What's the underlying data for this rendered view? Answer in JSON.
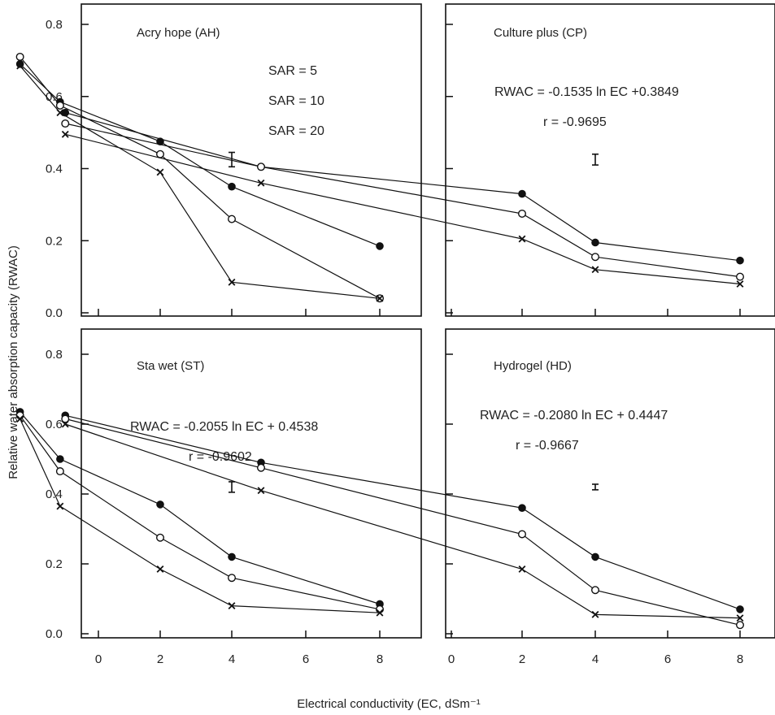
{
  "figure": {
    "ylabel": "Relative water absorption capacity (RWAC)",
    "xlabel": "Electrical conductivity (EC, dSm⁻¹",
    "yticks": [
      "0.0",
      "0.2",
      "0.4",
      "0.6",
      "0.8"
    ],
    "xticks": [
      "0",
      "2",
      "4",
      "6",
      "8"
    ],
    "legend": [
      "SAR = 5",
      "SAR = 10",
      "SAR = 20"
    ]
  },
  "chart_data": [
    {
      "type": "line",
      "title": "Acry hope (AH)",
      "xlim": [
        0,
        9
      ],
      "ylim": [
        0,
        0.85
      ],
      "x": [
        0.25,
        0.75,
        2,
        4,
        8
      ],
      "series": [
        {
          "name": "SAR = 5",
          "marker": "filled-circle",
          "values": [
            0.69,
            0.585,
            0.475,
            0.35,
            0.185
          ]
        },
        {
          "name": "SAR = 10",
          "marker": "open-circle",
          "values": [
            0.71,
            0.575,
            0.44,
            0.26,
            0.04
          ]
        },
        {
          "name": "SAR = 20",
          "marker": "cross",
          "values": [
            0.685,
            0.555,
            0.39,
            0.085,
            0.04
          ]
        }
      ],
      "error_bar": {
        "x": 4,
        "y": 0.425,
        "half": 0.02
      },
      "annotations": []
    },
    {
      "type": "line",
      "title": "Culture plus (CP)",
      "xlim": [
        0,
        9
      ],
      "ylim": [
        0,
        0.85
      ],
      "x": [
        0.25,
        1,
        2,
        4,
        8
      ],
      "series": [
        {
          "name": "SAR = 5",
          "marker": "filled-circle",
          "values": [
            0.555,
            0.405,
            0.33,
            0.195,
            0.145
          ]
        },
        {
          "name": "SAR = 10",
          "marker": "open-circle",
          "values": [
            0.525,
            0.405,
            0.275,
            0.155,
            0.1
          ]
        },
        {
          "name": "SAR = 20",
          "marker": "cross",
          "values": [
            0.495,
            0.36,
            0.205,
            0.12,
            0.08
          ]
        }
      ],
      "error_bar": {
        "x": 4,
        "y": 0.425,
        "half": 0.015
      },
      "annotations": [
        "RWAC = -0.1535 ln EC +0.3849",
        "r = -0.9695"
      ]
    },
    {
      "type": "line",
      "title": "Sta wet (ST)",
      "xlim": [
        0,
        9
      ],
      "ylim": [
        0,
        0.85
      ],
      "x": [
        0.25,
        0.75,
        2,
        4,
        8
      ],
      "series": [
        {
          "name": "SAR = 5",
          "marker": "filled-circle",
          "values": [
            0.635,
            0.5,
            0.37,
            0.22,
            0.085
          ]
        },
        {
          "name": "SAR = 10",
          "marker": "open-circle",
          "values": [
            0.625,
            0.465,
            0.275,
            0.16,
            0.07
          ]
        },
        {
          "name": "SAR = 20",
          "marker": "cross",
          "values": [
            0.615,
            0.365,
            0.185,
            0.08,
            0.06
          ]
        }
      ],
      "error_bar": {
        "x": 4,
        "y": 0.42,
        "half": 0.015
      },
      "annotations": [
        "RWAC = -0.2055 ln EC + 0.4538",
        "r = -0.9602"
      ]
    },
    {
      "type": "line",
      "title": "Hydrogel (HD)",
      "xlim": [
        0,
        9
      ],
      "ylim": [
        0,
        0.85
      ],
      "x": [
        0.25,
        1,
        2,
        4,
        8
      ],
      "series": [
        {
          "name": "SAR = 5",
          "marker": "filled-circle",
          "values": [
            0.625,
            0.49,
            0.36,
            0.22,
            0.07
          ]
        },
        {
          "name": "SAR = 10",
          "marker": "open-circle",
          "values": [
            0.615,
            0.475,
            0.285,
            0.125,
            0.025
          ]
        },
        {
          "name": "SAR = 20",
          "marker": "cross",
          "values": [
            0.6,
            0.41,
            0.185,
            0.055,
            0.045
          ]
        }
      ],
      "error_bar": {
        "x": 4,
        "y": 0.42,
        "half": 0.008
      },
      "annotations": [
        "RWAC = -0.2080 ln EC + 0.4447",
        "r = -0.9667"
      ]
    }
  ]
}
